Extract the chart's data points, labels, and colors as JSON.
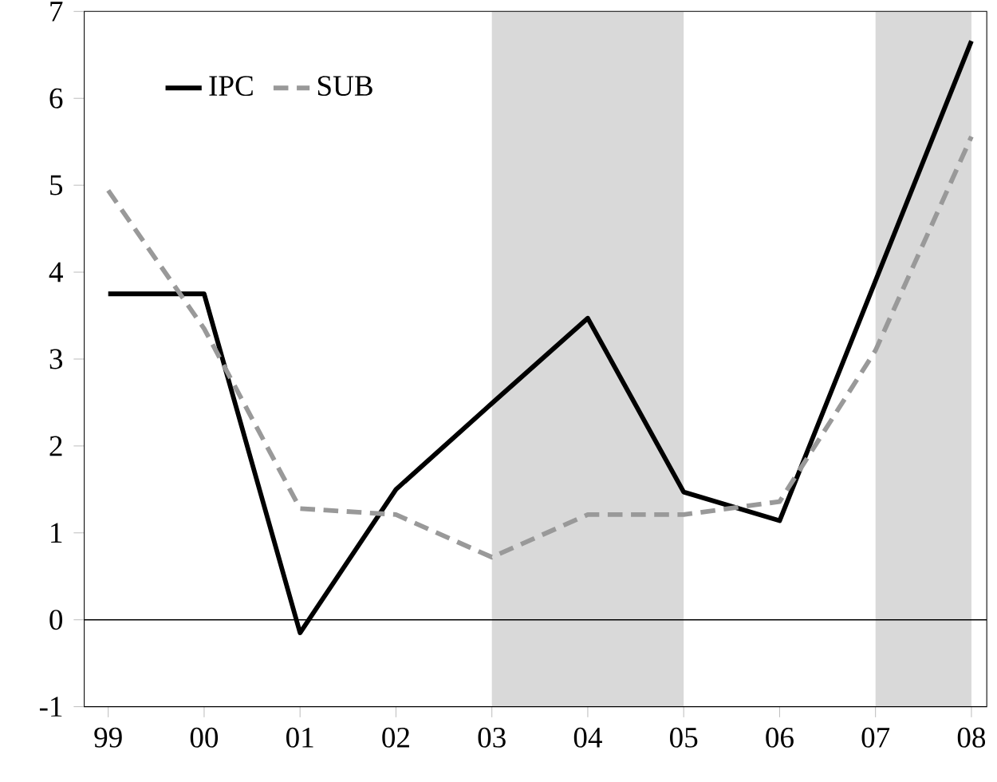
{
  "chart_data": {
    "type": "line",
    "x": [
      1999,
      2000,
      2001,
      2002,
      2003,
      2004,
      2005,
      2006,
      2007,
      2008
    ],
    "series": [
      {
        "name": "IPC",
        "color": "#000000",
        "line_style": "solid",
        "values": [
          3.75,
          3.75,
          -0.15,
          1.5,
          2.49,
          3.47,
          1.47,
          1.14,
          3.9,
          6.66
        ]
      },
      {
        "name": "SUB",
        "color": "#999999",
        "line_style": "dashed",
        "values": [
          4.94,
          3.35,
          1.28,
          1.21,
          0.72,
          1.21,
          1.21,
          1.36,
          3.1,
          5.56
        ]
      }
    ],
    "xlim": [
      1998.75,
      2008.16
    ],
    "xticks": [
      {
        "value": 1999,
        "label": "99"
      },
      {
        "value": 2000,
        "label": "00"
      },
      {
        "value": 2001,
        "label": "01"
      },
      {
        "value": 2002,
        "label": "02"
      },
      {
        "value": 2003,
        "label": "03"
      },
      {
        "value": 2004,
        "label": "04"
      },
      {
        "value": 2005,
        "label": "05"
      },
      {
        "value": 2006,
        "label": "06"
      },
      {
        "value": 2007,
        "label": "07"
      },
      {
        "value": 2008,
        "label": "08"
      }
    ],
    "ylim": [
      -1,
      7
    ],
    "yticks": [
      -1,
      0,
      1,
      2,
      3,
      4,
      5,
      6,
      7
    ],
    "ref_lines": [
      {
        "axis": "y",
        "value": 0,
        "color": "#000000"
      }
    ],
    "bands": [
      {
        "axis": "x",
        "from": 2003,
        "to": 2005,
        "color": "#d9d9d9"
      },
      {
        "axis": "x",
        "from": 2007,
        "to": 2008,
        "color": "#d9d9d9"
      }
    ],
    "grid": false,
    "legend": "top left",
    "marker": "none"
  }
}
